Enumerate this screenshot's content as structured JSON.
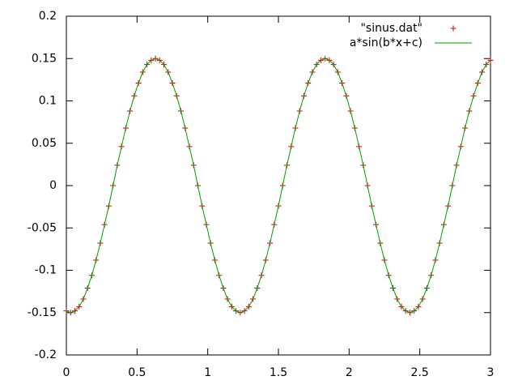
{
  "chart_data": {
    "type": "line",
    "x": [
      0,
      0.03,
      0.06,
      0.09,
      0.12,
      0.15,
      0.18,
      0.21,
      0.24,
      0.27,
      0.3,
      0.33,
      0.36,
      0.39,
      0.42,
      0.45,
      0.48,
      0.51,
      0.54,
      0.57,
      0.6,
      0.63,
      0.66,
      0.69,
      0.72,
      0.75,
      0.78,
      0.81,
      0.84,
      0.87,
      0.9,
      0.93,
      0.96,
      0.99,
      1.02,
      1.05,
      1.08,
      1.11,
      1.14,
      1.17,
      1.2,
      1.23,
      1.26,
      1.29,
      1.32,
      1.35,
      1.38,
      1.41,
      1.44,
      1.47,
      1.5,
      1.53,
      1.56,
      1.59,
      1.62,
      1.65,
      1.68,
      1.71,
      1.74,
      1.77,
      1.8,
      1.83,
      1.86,
      1.89,
      1.92,
      1.95,
      1.98,
      2.01,
      2.04,
      2.07,
      2.1,
      2.13,
      2.16,
      2.19,
      2.22,
      2.25,
      2.28,
      2.31,
      2.34,
      2.37,
      2.4,
      2.43,
      2.46,
      2.49,
      2.52,
      2.55,
      2.58,
      2.61,
      2.64,
      2.67,
      2.7,
      2.73,
      2.76,
      2.79,
      2.82,
      2.85,
      2.88,
      2.91,
      2.94,
      2.97,
      3
    ],
    "series": [
      {
        "name": "\"sinus.dat\"",
        "color": "#cc0000",
        "style": "points",
        "values": [
          -0.148,
          -0.15,
          -0.148,
          -0.143,
          -0.134,
          -0.121,
          -0.106,
          -0.088,
          -0.068,
          -0.046,
          -0.024,
          0,
          0.024,
          0.046,
          0.068,
          0.088,
          0.106,
          0.121,
          0.134,
          0.143,
          0.148,
          0.15,
          0.148,
          0.143,
          0.134,
          0.121,
          0.106,
          0.088,
          0.068,
          0.046,
          0.024,
          0,
          -0.024,
          -0.046,
          -0.068,
          -0.088,
          -0.106,
          -0.121,
          -0.134,
          -0.143,
          -0.148,
          -0.15,
          -0.148,
          -0.143,
          -0.134,
          -0.121,
          -0.106,
          -0.088,
          -0.068,
          -0.046,
          -0.024,
          0,
          0.024,
          0.046,
          0.068,
          0.088,
          0.106,
          0.121,
          0.134,
          0.143,
          0.148,
          0.15,
          0.148,
          0.143,
          0.134,
          0.121,
          0.106,
          0.088,
          0.068,
          0.046,
          0.024,
          0,
          -0.024,
          -0.046,
          -0.068,
          -0.088,
          -0.106,
          -0.121,
          -0.134,
          -0.143,
          -0.148,
          -0.15,
          -0.148,
          -0.143,
          -0.134,
          -0.121,
          -0.106,
          -0.088,
          -0.068,
          -0.046,
          -0.024,
          0,
          0.024,
          0.046,
          0.068,
          0.088,
          0.106,
          0.121,
          0.134,
          0.143,
          0.148
        ]
      },
      {
        "name": "a*sin(b*x+c)",
        "color": "#00a000",
        "style": "lines",
        "values": [
          -0.148,
          -0.15,
          -0.148,
          -0.143,
          -0.134,
          -0.121,
          -0.106,
          -0.088,
          -0.068,
          -0.046,
          -0.024,
          0,
          0.024,
          0.046,
          0.068,
          0.088,
          0.106,
          0.121,
          0.134,
          0.143,
          0.148,
          0.15,
          0.148,
          0.143,
          0.134,
          0.121,
          0.106,
          0.088,
          0.068,
          0.046,
          0.024,
          0,
          -0.024,
          -0.046,
          -0.068,
          -0.088,
          -0.106,
          -0.121,
          -0.134,
          -0.143,
          -0.148,
          -0.15,
          -0.148,
          -0.143,
          -0.134,
          -0.121,
          -0.106,
          -0.088,
          -0.068,
          -0.046,
          -0.024,
          0,
          0.024,
          0.046,
          0.068,
          0.088,
          0.106,
          0.121,
          0.134,
          0.143,
          0.148,
          0.15,
          0.148,
          0.143,
          0.134,
          0.121,
          0.106,
          0.088,
          0.068,
          0.046,
          0.024,
          0,
          -0.024,
          -0.046,
          -0.068,
          -0.088,
          -0.106,
          -0.121,
          -0.134,
          -0.143,
          -0.148,
          -0.15,
          -0.148,
          -0.143,
          -0.134,
          -0.121,
          -0.106,
          -0.088,
          -0.068,
          -0.046,
          -0.024,
          0,
          0.024,
          0.046,
          0.068,
          0.088,
          0.106,
          0.121,
          0.134,
          0.143,
          0.148
        ]
      }
    ],
    "xlim": [
      0,
      3
    ],
    "xticks": [
      0,
      0.5,
      1,
      1.5,
      2,
      2.5,
      3
    ],
    "ylim": [
      -0.2,
      0.2
    ],
    "yticks": [
      -0.2,
      -0.15,
      -0.1,
      -0.05,
      0,
      0.05,
      0.1,
      0.15,
      0.2
    ],
    "grid": false,
    "legend": "top-right"
  }
}
